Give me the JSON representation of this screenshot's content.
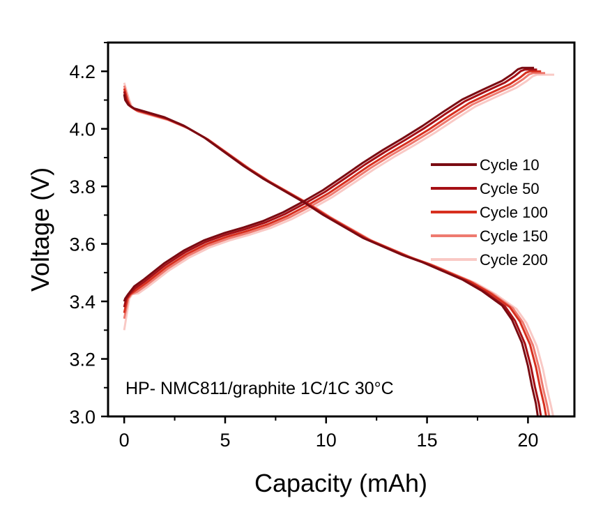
{
  "chart_data": {
    "type": "line",
    "title": "",
    "xlabel": "Capacity (mAh)",
    "ylabel": "Voltage (V)",
    "xlim": [
      -0.8,
      22.3
    ],
    "ylim": [
      3.0,
      4.3
    ],
    "xticks": [
      0,
      5,
      10,
      15,
      20
    ],
    "yticks": [
      3.0,
      3.2,
      3.4,
      3.6,
      3.8,
      4.0,
      4.2
    ],
    "xtick_labels": [
      "0",
      "5",
      "10",
      "15",
      "20"
    ],
    "ytick_labels": [
      "3.0",
      "3.2",
      "3.4",
      "3.6",
      "3.8",
      "4.0",
      "4.2"
    ],
    "grid": false,
    "legend_position": "right",
    "annotation": "HP- NMC811/graphite 1C/1C 30°C",
    "base_curves": {
      "charge": {
        "x": [
          0,
          0.05,
          0.2,
          0.5,
          1,
          2,
          3,
          4,
          5,
          6,
          7,
          8,
          9,
          10,
          11,
          12,
          13,
          14,
          15,
          16,
          17,
          18,
          19,
          19.5,
          19.8,
          20
        ],
        "y": [
          3.37,
          3.41,
          3.425,
          3.44,
          3.465,
          3.52,
          3.565,
          3.6,
          3.625,
          3.645,
          3.668,
          3.698,
          3.735,
          3.775,
          3.822,
          3.87,
          3.914,
          3.955,
          3.998,
          4.045,
          4.09,
          4.123,
          4.155,
          4.178,
          4.195,
          4.2
        ]
      },
      "discharge": {
        "x": [
          0,
          0.05,
          0.2,
          0.5,
          1,
          2,
          3,
          4,
          5,
          6,
          7,
          8,
          9,
          10,
          11,
          12,
          13,
          14,
          15,
          16,
          17,
          18,
          19,
          19.5,
          20,
          20.3,
          20.5,
          20.7,
          20.8
        ],
        "y": [
          4.16,
          4.1,
          4.078,
          4.065,
          4.055,
          4.035,
          4.005,
          3.965,
          3.915,
          3.865,
          3.82,
          3.78,
          3.74,
          3.695,
          3.655,
          3.615,
          3.585,
          3.555,
          3.53,
          3.5,
          3.47,
          3.43,
          3.38,
          3.33,
          3.25,
          3.17,
          3.1,
          3.04,
          3.0
        ]
      }
    },
    "series": [
      {
        "name": "Cycle 10",
        "color": "#7a0b12",
        "x_scale": 0.985,
        "x_shift": 0.0,
        "v_shift": 0.012,
        "charge_start_v": 3.4,
        "discharge_start_v": 4.12,
        "rest_end_x": 20.3
      },
      {
        "name": "Cycle 50",
        "color": "#a50f15",
        "x_scale": 0.99,
        "x_shift": 0.05,
        "v_shift": 0.006,
        "charge_start_v": 3.38,
        "discharge_start_v": 4.13,
        "rest_end_x": 20.45
      },
      {
        "name": "Cycle 100",
        "color": "#d7301f",
        "x_scale": 1.0,
        "x_shift": 0.1,
        "v_shift": 0.0,
        "charge_start_v": 3.36,
        "discharge_start_v": 4.14,
        "rest_end_x": 20.65
      },
      {
        "name": "Cycle 150",
        "color": "#ee7a70",
        "x_scale": 1.005,
        "x_shift": 0.15,
        "v_shift": -0.006,
        "charge_start_v": 3.34,
        "discharge_start_v": 4.15,
        "rest_end_x": 20.85
      },
      {
        "name": "Cycle 200",
        "color": "#f9c9c5",
        "x_scale": 1.012,
        "x_shift": 0.2,
        "v_shift": -0.012,
        "charge_start_v": 3.3,
        "discharge_start_v": 4.16,
        "rest_end_x": 21.3
      }
    ]
  }
}
